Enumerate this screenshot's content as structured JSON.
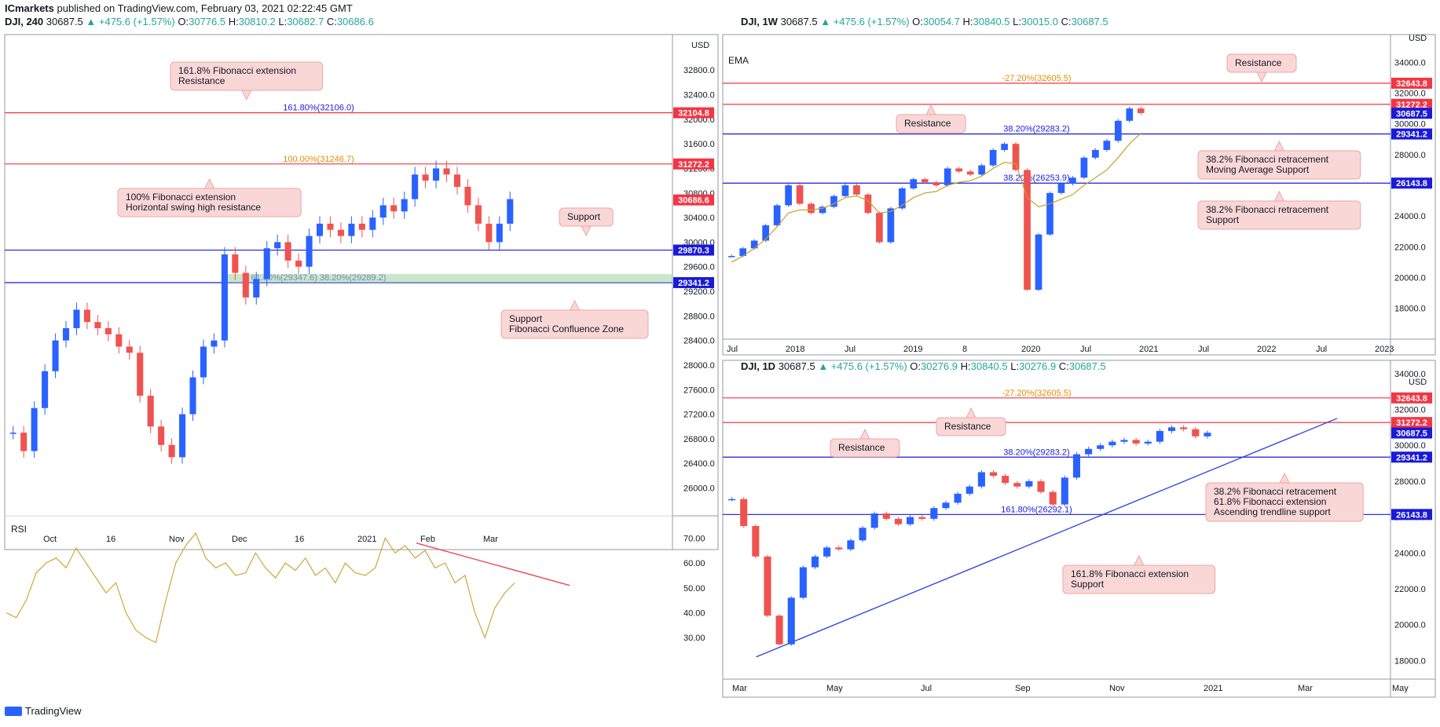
{
  "header": {
    "publisher": "ICmarkets",
    "published_text": "published on TradingView.com, February 03, 2021 02:22:45 GMT"
  },
  "panels": {
    "h4": {
      "symbol": "DJI, 240",
      "last": "30687.5",
      "change": "▲ +475.6 (+1.57%)",
      "o_label": "O:",
      "o": "30776.5",
      "h_label": "H:",
      "h": "30810.2",
      "l_label": "L:",
      "l": "30682.7",
      "c_label": "C:",
      "c": "30686.6",
      "currency": "USD",
      "rsi_label": "RSI"
    },
    "w1": {
      "symbol": "DJI, 1W",
      "last": "30687.5",
      "change": "▲ +475.6 (+1.57%)",
      "o_label": "O:",
      "o": "30054.7",
      "h_label": "H:",
      "h": "30840.5",
      "l_label": "L:",
      "l": "30015.0",
      "c_label": "C:",
      "c": "30687.5",
      "currency": "USD",
      "ema_label": "EMA"
    },
    "d1": {
      "symbol": "DJI, 1D",
      "last": "30687.5",
      "change": "▲ +475.6 (+1.57%)",
      "o_label": "O:",
      "o": "30276.9",
      "h_label": "H:",
      "h": "30840.5",
      "l_label": "L:",
      "l": "30276.9",
      "c_label": "C:",
      "c": "30687.5",
      "currency": "USD"
    }
  },
  "footer": {
    "brand": "TradingView"
  },
  "colors": {
    "up": "#2962ff",
    "down": "#ef5350",
    "resistance": "#f23645",
    "support": "#1a1adb",
    "fib_orange": "#e58c00",
    "ema": "#c8a02a",
    "rsi": "#c8a02a",
    "callout_bg": "#f9d7d7",
    "callout_border": "#f0a5a5",
    "zone": "#a5d6a7",
    "trendline": "#2b3fe0"
  },
  "chart_data": [
    {
      "id": "h4",
      "type": "candlestick",
      "title": "DJI, 240",
      "ylim": [
        25700,
        33250
      ],
      "y_ticks": [
        "32800.0",
        "32400.0",
        "32000.0",
        "31600.0",
        "31200.0",
        "30800.0",
        "30400.0",
        "30000.0",
        "29600.0",
        "29200.0",
        "28800.0",
        "28400.0",
        "28000.0",
        "27600.0",
        "27200.0",
        "26800.0",
        "26400.0",
        "26000.0"
      ],
      "x_ticks": [
        "Oct",
        "16",
        "Nov",
        "Dec",
        "16",
        "2021",
        "Feb",
        "Mar"
      ],
      "price_labels": [
        {
          "value": "32104.8",
          "kind": "resistance"
        },
        {
          "value": "31272.2",
          "kind": "resistance"
        },
        {
          "value": "30686.6",
          "kind": "resistance"
        },
        {
          "value": "29870.3",
          "kind": "support"
        },
        {
          "value": "29341.2",
          "kind": "support"
        }
      ],
      "hlines": [
        {
          "value": 32104.8,
          "kind": "resistance",
          "label": "161.80%(32106.0)"
        },
        {
          "value": 31272.2,
          "kind": "resistance",
          "label": "100.00%(31246.7)"
        },
        {
          "value": 29870.3,
          "kind": "support",
          "label": ""
        },
        {
          "value": 29341.2,
          "kind": "support",
          "label": "61.80%(29347.6)  38.20%(29289.2)"
        }
      ],
      "zone": [
        29341.2,
        29480.0
      ],
      "series": [
        {
          "name": "DJI price (approx. path)",
          "values": [
            26900,
            26600,
            27300,
            27900,
            28400,
            28600,
            28900,
            28700,
            28600,
            28500,
            28300,
            28200,
            27500,
            27000,
            26700,
            26500,
            27200,
            27800,
            28300,
            28400,
            29800,
            29500,
            29100,
            29400,
            29900,
            30000,
            29700,
            29600,
            30100,
            30300,
            30200,
            30100,
            30300,
            30200,
            30400,
            30600,
            30500,
            30700,
            31100,
            31000,
            31200,
            31100,
            30900,
            30600,
            30300,
            30000,
            30300,
            30700
          ]
        }
      ],
      "annotations": [
        "161.8% Fibonacci extension\nResistance",
        "100% Fibonacci extension\nHorizontal swing high resistance",
        "Support",
        "Support\nFibonacci Confluence Zone"
      ],
      "rsi": {
        "ylim": [
          25,
          78
        ],
        "ticks": [
          "70.00",
          "60.00",
          "50.00",
          "40.00",
          "30.00"
        ],
        "values": [
          40,
          38,
          45,
          56,
          60,
          62,
          58,
          66,
          60,
          54,
          48,
          52,
          40,
          33,
          30,
          28,
          45,
          60,
          67,
          72,
          62,
          58,
          60,
          55,
          56,
          64,
          58,
          54,
          60,
          57,
          62,
          55,
          58,
          52,
          60,
          56,
          55,
          58,
          70,
          64,
          67,
          62,
          65,
          58,
          60,
          52,
          55,
          40,
          30,
          42,
          48,
          52
        ]
      }
    },
    {
      "id": "w1",
      "type": "candlestick",
      "title": "DJI, 1W",
      "ylim": [
        16500,
        35300
      ],
      "y_ticks": [
        "34000.0",
        "32000.0",
        "30000.0",
        "28000.0",
        "26000.0",
        "24000.0",
        "22000.0",
        "20000.0",
        "18000.0"
      ],
      "x_ticks": [
        "Jul",
        "2018",
        "Jul",
        "2019",
        "8",
        "2020",
        "Jul",
        "2021",
        "Jul",
        "2022",
        "Jul",
        "2023"
      ],
      "price_labels": [
        {
          "value": "32643.8",
          "kind": "resistance"
        },
        {
          "value": "31272.2",
          "kind": "resistance"
        },
        {
          "value": "30687.5",
          "kind": "support"
        },
        {
          "value": "29341.2",
          "kind": "support"
        },
        {
          "value": "26143.8",
          "kind": "support"
        }
      ],
      "hlines": [
        {
          "value": 32643.8,
          "kind": "resistance",
          "label": "-27.20%(32605.5)"
        },
        {
          "value": 31272.2,
          "kind": "resistance",
          "label": ""
        },
        {
          "value": 29341.2,
          "kind": "support",
          "label": "38.20%(29283.2)"
        },
        {
          "value": 26143.8,
          "kind": "support",
          "label": "38.20%(26253.9)"
        }
      ],
      "series": [
        {
          "name": "DJI price (approx. path)",
          "values": [
            21400,
            21900,
            22400,
            23400,
            24700,
            26000,
            24800,
            24200,
            24600,
            25300,
            26000,
            25400,
            24200,
            22300,
            24500,
            25800,
            26400,
            26200,
            26000,
            27100,
            26900,
            26700,
            27300,
            28300,
            28700,
            27000,
            19200,
            22800,
            25500,
            26100,
            26500,
            27800,
            28300,
            28900,
            30200,
            31000,
            30700
          ]
        },
        {
          "name": "EMA",
          "values": [
            21000,
            21400,
            21900,
            22500,
            23300,
            24200,
            24400,
            24400,
            24500,
            24800,
            25200,
            25300,
            25000,
            24200,
            24300,
            24700,
            25200,
            25500,
            25600,
            26000,
            26200,
            26300,
            26600,
            27100,
            27500,
            27400,
            25200,
            24600,
            24800,
            25100,
            25400,
            26000,
            26500,
            27000,
            27800,
            28700,
            29400
          ]
        }
      ],
      "annotations": [
        "Resistance",
        "Resistance",
        "38.2%  Fibonacci retracement\nMoving Average Support",
        "38.2%  Fibonacci retracement\nSupport"
      ]
    },
    {
      "id": "d1",
      "type": "candlestick",
      "title": "DJI, 1D",
      "ylim": [
        17400,
        34300
      ],
      "y_ticks": [
        "34000.0",
        "32000.0",
        "30000.0",
        "28000.0",
        "26000.0",
        "24000.0",
        "22000.0",
        "20000.0",
        "18000.0"
      ],
      "x_ticks": [
        "Mar",
        "May",
        "Jul",
        "Sep",
        "Nov",
        "2021",
        "Mar",
        "May"
      ],
      "price_labels": [
        {
          "value": "32643.8",
          "kind": "resistance"
        },
        {
          "value": "31272.2",
          "kind": "resistance"
        },
        {
          "value": "30687.5",
          "kind": "support"
        },
        {
          "value": "29341.2",
          "kind": "support"
        },
        {
          "value": "26143.8",
          "kind": "support"
        }
      ],
      "hlines": [
        {
          "value": 32643.8,
          "kind": "resistance",
          "label": "-27.20%(32605.5)"
        },
        {
          "value": 31272.2,
          "kind": "resistance",
          "label": ""
        },
        {
          "value": 29341.2,
          "kind": "support",
          "label": "38.20%(29283.2)"
        },
        {
          "value": 26143.8,
          "kind": "support",
          "label": "161.80%(26292.1)"
        }
      ],
      "trendline": {
        "from": {
          "t": 0.05,
          "v": 18200
        },
        "to": {
          "t": 0.92,
          "v": 31500
        }
      },
      "series": [
        {
          "name": "DJI price (approx. path)",
          "values": [
            27000,
            25500,
            23800,
            20500,
            18900,
            21500,
            23200,
            23800,
            24300,
            24200,
            24700,
            25400,
            26200,
            25900,
            25600,
            26000,
            25900,
            26500,
            26800,
            27300,
            27700,
            28500,
            28300,
            27900,
            27700,
            28000,
            27400,
            26700,
            28200,
            29500,
            29800,
            30000,
            30200,
            30300,
            30100,
            30200,
            30800,
            31000,
            30900,
            30500,
            30700
          ]
        }
      ],
      "annotations": [
        "Resistance",
        "Resistance",
        "38.2% Fibonacci retracement\n61.8% Fibonacci extension\nAscending trendline support",
        "161.8% Fibonacci extension\nSupport"
      ]
    }
  ]
}
